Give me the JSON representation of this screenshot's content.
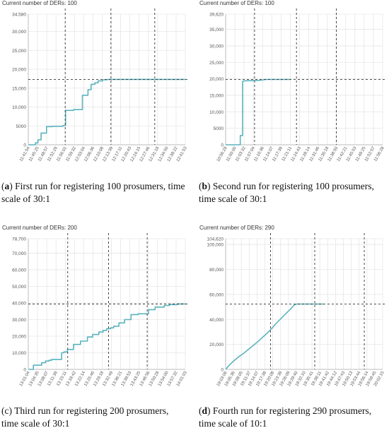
{
  "colors": {
    "line": "#5bb3bd",
    "grid": "#e6e6e6",
    "axis": "#bbbbbb",
    "tick_text": "#555555",
    "marker": "#333333"
  },
  "chart_data": [
    {
      "type": "line",
      "header": "Current number of DERs: 100",
      "caption_letter": "a",
      "caption_before": "(",
      "caption_after": ") First run for registering 100 prosumers, time scale of 30:1",
      "y_ticks": [
        0,
        5000,
        10000,
        15000,
        20000,
        25000,
        30000,
        34580
      ],
      "y_tick_labels": [
        "0",
        "5000",
        "10,000",
        "15,000",
        "20,000",
        "25,000",
        "30,000",
        "34,580"
      ],
      "ylim": [
        0,
        34580
      ],
      "x_tick_labels": [
        "11:41:54",
        "11:45:25",
        "11:48:57",
        "11:52:29",
        "11:56:01",
        "11:59:32",
        "12:03:04",
        "12:06:36",
        "12:10:08",
        "12:13:39",
        "12:17:11",
        "12:20:43",
        "12:24:15",
        "12:27:46",
        "12:31:18",
        "12:34:50",
        "12:38:22",
        "12:41:53"
      ],
      "x_min_sec": 42114,
      "x_max_sec": 45713,
      "hline": 17300,
      "vlines_sec": [
        42960,
        44008,
        45013
      ],
      "series_times": [
        "11:41:54",
        "11:44:37",
        "11:44:37",
        "11:45:34",
        "11:45:34",
        "11:46:48",
        "11:46:48",
        "11:48:52",
        "11:48:52",
        "11:51:10",
        "11:51:10",
        "11:55:10",
        "11:55:10",
        "11:56:09",
        "11:56:09",
        "11:59:10",
        "11:59:10",
        "12:02:34",
        "12:02:34",
        "12:04:43",
        "12:04:43",
        "12:05:54",
        "12:05:54",
        "12:07:21",
        "12:07:21",
        "12:08:33",
        "12:08:33",
        "12:10:16",
        "12:10:16",
        "12:12:04",
        "12:12:04",
        "12:41:53"
      ],
      "series_values": [
        0,
        0,
        500,
        500,
        1300,
        1300,
        3100,
        3100,
        4800,
        4800,
        4900,
        4900,
        5100,
        5100,
        9100,
        9100,
        9300,
        9300,
        13100,
        13100,
        14600,
        14600,
        16000,
        16000,
        16400,
        16400,
        16900,
        16900,
        17200,
        17200,
        17300,
        17300
      ]
    },
    {
      "type": "line",
      "header": "Current number of DERs: 100",
      "caption_letter": "b",
      "caption_before": "(",
      "caption_after": ") Second run for registering 100 prosumers, time scale of 30:1",
      "y_ticks": [
        0,
        5000,
        10000,
        15000,
        20000,
        25000,
        30000,
        35000,
        39620
      ],
      "y_tick_labels": [
        "0",
        "5000",
        "10,000",
        "15,000",
        "20,000",
        "25,000",
        "30,000",
        "35,000",
        "39,620"
      ],
      "ylim": [
        0,
        39620
      ],
      "x_tick_labels": [
        "10:56:29",
        "11:00:00",
        "11:03:32",
        "11:07:04",
        "11:10:36",
        "11:14:07",
        "11:17:39",
        "11:21:11",
        "11:24:43",
        "11:28:14",
        "11:31:46",
        "11:35:18",
        "11:38:50",
        "11:42:21",
        "11:45:53",
        "11:49:25",
        "11:52:57",
        "11:56:28"
      ],
      "x_min_sec": 39389,
      "x_max_sec": 42988,
      "hline": 19800,
      "vlines_sec": [
        40052,
        41013,
        41926
      ],
      "series_times": [
        "10:56:29",
        "11:02:04",
        "11:02:04",
        "11:02:58",
        "11:02:58",
        "11:03:40",
        "11:09:00",
        "11:11:02",
        "11:12:00",
        "11:17:00",
        "11:19:00",
        "11:21:11"
      ],
      "series_values": [
        0,
        0,
        2800,
        2800,
        19200,
        19400,
        19500,
        19700,
        19800,
        19800,
        19800,
        19800
      ]
    },
    {
      "type": "line",
      "header": "Current number of DERs: 200",
      "caption_letter": "c",
      "caption_before": "(c) ",
      "caption_after": "Third run for registering 200 prosumers, time scale of 30:1",
      "y_ticks": [
        0,
        10000,
        20000,
        30000,
        40000,
        50000,
        60000,
        70000,
        78700
      ],
      "y_tick_labels": [
        "0",
        "10,000",
        "20,000",
        "30,000",
        "40,000",
        "50,000",
        "60,000",
        "70,000",
        "78,700"
      ],
      "ylim": [
        0,
        78700
      ],
      "x_tick_labels": [
        "13:01:04",
        "13:04:35",
        "13:08:07",
        "13:11:39",
        "13:15:11",
        "13:18:42",
        "13:22:14",
        "13:25:46",
        "13:29:18",
        "13:32:49",
        "13:36:21",
        "13:39:53",
        "13:43:25",
        "13:46:56",
        "13:50:28",
        "13:54:00",
        "13:57:32",
        "14:01:03"
      ],
      "x_min_sec": 46864,
      "x_max_sec": 50463,
      "hline": 39400,
      "vlines_sec": [
        47768,
        48703,
        49589
      ],
      "series_times": [
        "13:01:04",
        "13:03:00",
        "13:03:00",
        "13:06:10",
        "13:06:10",
        "13:07:40",
        "13:07:40",
        "13:09:00",
        "13:09:00",
        "13:10:00",
        "13:10:00",
        "13:13:50",
        "13:13:50",
        "13:14:40",
        "13:14:40",
        "13:16:00",
        "13:16:00",
        "13:18:20",
        "13:18:20",
        "13:21:00",
        "13:21:00",
        "13:23:40",
        "13:23:40",
        "13:25:40",
        "13:25:40",
        "13:28:00",
        "13:28:00",
        "13:29:40",
        "13:29:40",
        "13:31:00",
        "13:31:00",
        "13:32:30",
        "13:32:30",
        "13:33:40",
        "13:33:40",
        "13:35:40",
        "13:35:40",
        "13:37:50",
        "13:37:50",
        "13:40:20",
        "13:40:20",
        "13:43:00",
        "13:43:00",
        "13:47:00",
        "13:47:00",
        "13:49:30",
        "13:49:30",
        "13:53:00",
        "13:53:00",
        "13:55:00",
        "13:55:00",
        "13:58:00",
        "13:58:00",
        "14:01:03"
      ],
      "series_values": [
        0,
        0,
        2500,
        2500,
        4000,
        4000,
        5000,
        5000,
        5500,
        5500,
        6000,
        6000,
        10000,
        10000,
        10500,
        10500,
        12000,
        12000,
        15000,
        15000,
        17000,
        17000,
        19500,
        19500,
        21000,
        21000,
        22500,
        22500,
        23500,
        23500,
        24500,
        24500,
        25000,
        25000,
        26000,
        26000,
        28000,
        28000,
        30000,
        30000,
        33000,
        33000,
        33500,
        33500,
        36000,
        36000,
        37500,
        37500,
        38500,
        38500,
        39000,
        39000,
        39400,
        39400
      ]
    },
    {
      "type": "line",
      "header": "Current number of DERs: 290",
      "caption_letter": "d",
      "caption_before": "(",
      "caption_after": ") Fourth run for registering 290 prosumers, time scale of 10:1",
      "y_ticks": [
        0,
        20000,
        40000,
        60000,
        80000,
        100000,
        104620
      ],
      "y_tick_labels": [
        "0",
        "20,000",
        "40,000",
        "60,000",
        "80,000",
        "100,000",
        "104,620"
      ],
      "ylim": [
        0,
        104620
      ],
      "x_tick_labels": [
        "19:03:06",
        "19:05:36",
        "19:08:05",
        "19:11:37",
        "19:14:07",
        "19:17:38",
        "19:20:08",
        "19:23:39",
        "19:26:09",
        "19:29:40",
        "19:32:10",
        "19:35:41",
        "19:38:11",
        "19:41:42",
        "19:44:12",
        "19:47:43",
        "19:50:13",
        "19:53:44",
        "19:56:14",
        "19:59:45",
        "20:02:15"
      ],
      "x_min_sec": 68586,
      "x_max_sec": 72135,
      "hline": 52300,
      "vlines_sec": [
        69600,
        70600,
        71720
      ],
      "series_times": [
        "19:03:06",
        "19:04:20",
        "19:06:00",
        "19:08:00",
        "19:10:00",
        "19:12:00",
        "19:14:00",
        "19:15:40",
        "19:17:10",
        "19:18:30",
        "19:19:40",
        "19:21:00",
        "19:22:00",
        "19:23:10",
        "19:24:20",
        "19:25:30",
        "19:26:40",
        "19:27:40",
        "19:28:30",
        "19:29:10",
        "19:29:50",
        "19:31:00",
        "19:32:10",
        "19:40:00"
      ],
      "series_values": [
        0,
        3000,
        6500,
        10000,
        13000,
        16500,
        20000,
        23000,
        26000,
        28500,
        31000,
        34000,
        36500,
        39000,
        41500,
        44000,
        46500,
        48500,
        50500,
        51800,
        52300,
        52300,
        52300,
        52300
      ]
    }
  ]
}
